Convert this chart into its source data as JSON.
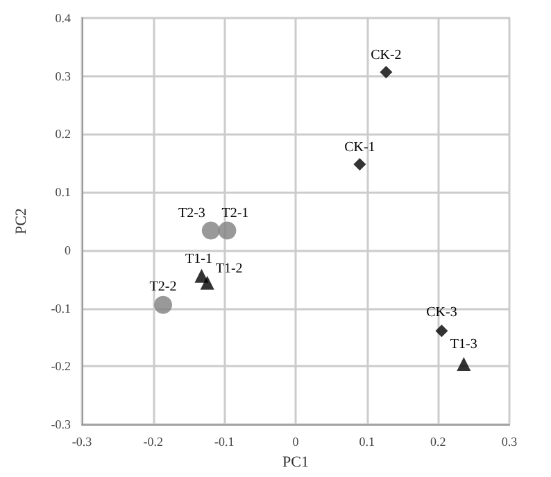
{
  "chart_data": {
    "type": "scatter",
    "xlabel": "PC1",
    "ylabel": "PC2",
    "xlim": [
      -0.3,
      0.3
    ],
    "xticks": [
      -0.3,
      -0.2,
      -0.1,
      0,
      0.1,
      0.2,
      0.3
    ],
    "ylim": [
      -0.3,
      0.4
    ],
    "yticks": [
      -0.3,
      -0.2,
      -0.1,
      0,
      0.1,
      0.2,
      0.3,
      0.4
    ],
    "grid": true,
    "series": [
      {
        "color": "#000000",
        "marker": "diamond",
        "x": [
          0.09,
          0.127,
          0.205
        ],
        "values": [
          0.148,
          0.307,
          -0.139
        ]
      },
      {
        "color": "#000000",
        "marker": "triangle",
        "x": [
          -0.132,
          -0.124,
          0.236
        ],
        "values": [
          -0.044,
          -0.056,
          -0.196
        ]
      },
      {
        "color": "#808080",
        "marker": "circle",
        "x": [
          -0.096,
          -0.186,
          -0.119
        ],
        "values": [
          0.034,
          -0.094,
          0.034
        ]
      }
    ],
    "annotations": [
      {
        "text": "CK-1",
        "x": 0.09,
        "y": 0.148
      },
      {
        "text": "CK-2",
        "x": 0.127,
        "y": 0.307
      },
      {
        "text": "CK-3",
        "x": 0.205,
        "y": -0.139
      },
      {
        "text": "T1-1",
        "x": -0.132,
        "y": -0.044
      },
      {
        "text": "T1-2",
        "x": -0.124,
        "y": -0.056
      },
      {
        "text": "T1-3",
        "x": 0.236,
        "y": -0.196
      },
      {
        "text": "T2-1",
        "x": -0.096,
        "y": 0.034
      },
      {
        "text": "T2-2",
        "x": -0.186,
        "y": -0.094
      },
      {
        "text": "T2-3",
        "x": -0.119,
        "y": 0.034
      }
    ]
  }
}
